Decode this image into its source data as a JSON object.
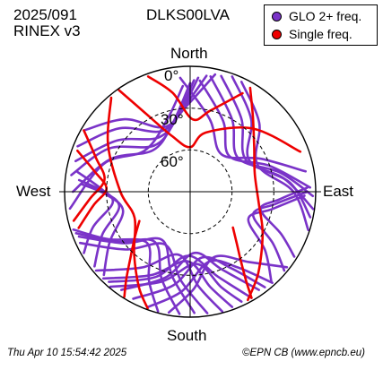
{
  "header": {
    "date": "2025/091",
    "format": "RINEX v3",
    "station": "DLKS00LVA"
  },
  "footer": {
    "timestamp": "Thu Apr 10 15:54:42 2025",
    "credit": "©EPN CB (www.epncb.eu)"
  },
  "colors": {
    "glo": "#7a33c8",
    "single": "#ee0000",
    "axis": "#000000",
    "grid": "#000000"
  },
  "chart_data": {
    "type": "polar-skyplot",
    "directions": {
      "north": "North",
      "south": "South",
      "east": "East",
      "west": "West"
    },
    "elevation_labels": [
      "0°",
      "30°",
      "60°"
    ],
    "elevation_rings": [
      0,
      30,
      60
    ],
    "legend": [
      {
        "name": "GLO 2+ freq.",
        "color": "#7a33c8"
      },
      {
        "name": "Single freq.",
        "color": "#ee0000"
      }
    ],
    "legend_position": "top-right",
    "series": [
      {
        "name": "GLO 2+ freq.",
        "color": "#7a33c8",
        "tracks": [
          {
            "az": [
              300,
              318,
              338,
              358,
              12
            ],
            "el": [
              2,
              20,
              40,
              28,
              4
            ]
          },
          {
            "az": [
              292,
              312,
              335,
              355,
              8
            ],
            "el": [
              3,
              22,
              42,
              30,
              6
            ]
          },
          {
            "az": [
              285,
              305,
              330,
              352,
              4
            ],
            "el": [
              5,
              26,
              45,
              34,
              8
            ]
          },
          {
            "az": [
              278,
              298,
              322,
              348,
              2
            ],
            "el": [
              4,
              24,
              48,
              38,
              10
            ]
          },
          {
            "az": [
              270,
              292,
              318,
              345,
              0
            ],
            "el": [
              6,
              28,
              50,
              40,
              12
            ]
          },
          {
            "az": [
              262,
              288,
              312,
              342,
              356
            ],
            "el": [
              3,
              25,
              46,
              36,
              14
            ]
          },
          {
            "az": [
              10,
              30,
              55,
              78,
              92
            ],
            "el": [
              6,
              30,
              48,
              24,
              2
            ]
          },
          {
            "az": [
              5,
              25,
              48,
              72,
              88
            ],
            "el": [
              10,
              34,
              52,
              30,
              4
            ]
          },
          {
            "az": [
              15,
              35,
              60,
              82,
              98
            ],
            "el": [
              4,
              26,
              44,
              22,
              1
            ]
          },
          {
            "az": [
              20,
              40,
              62,
              85,
              102
            ],
            "el": [
              2,
              22,
              42,
              18,
              2
            ]
          },
          {
            "az": [
              355,
              15,
              40,
              65,
              80
            ],
            "el": [
              8,
              36,
              55,
              34,
              6
            ]
          },
          {
            "az": [
              25,
              45,
              68,
              90,
              108
            ],
            "el": [
              3,
              20,
              38,
              16,
              1
            ]
          },
          {
            "az": [
              200,
              185,
              165,
              148,
              138
            ],
            "el": [
              2,
              18,
              38,
              26,
              2
            ]
          },
          {
            "az": [
              208,
              190,
              170,
              152,
              142
            ],
            "el": [
              3,
              22,
              42,
              28,
              3
            ]
          },
          {
            "az": [
              215,
              196,
              176,
              158,
              145
            ],
            "el": [
              4,
              26,
              46,
              30,
              4
            ]
          },
          {
            "az": [
              222,
              202,
              182,
              162,
              150
            ],
            "el": [
              3,
              24,
              44,
              26,
              2
            ]
          },
          {
            "az": [
              190,
              178,
              160,
              140,
              128
            ],
            "el": [
              2,
              20,
              40,
              24,
              2
            ]
          },
          {
            "az": [
              195,
              205,
              220,
              240,
              252
            ],
            "el": [
              1,
              20,
              42,
              22,
              2
            ]
          },
          {
            "az": [
              185,
              198,
              215,
              236,
              250
            ],
            "el": [
              2,
              24,
              46,
              26,
              3
            ]
          },
          {
            "az": [
              178,
              192,
              210,
              232,
              248
            ],
            "el": [
              3,
              28,
              50,
              30,
              4
            ]
          },
          {
            "az": [
              172,
              186,
              205,
              228,
              245
            ],
            "el": [
              2,
              26,
              48,
              28,
              3
            ]
          },
          {
            "az": [
              165,
              175,
              190,
              212,
              230
            ],
            "el": [
              1,
              22,
              44,
              26,
              2
            ]
          },
          {
            "az": [
              160,
              168,
              182,
              205,
              225
            ],
            "el": [
              2,
              20,
              40,
              24,
              2
            ]
          },
          {
            "az": [
              155,
              162,
              175,
              198,
              220
            ],
            "el": [
              3,
              18,
              38,
              22,
              1
            ]
          },
          {
            "az": [
              130,
              122,
              110,
              98,
              90
            ],
            "el": [
              2,
              20,
              42,
              28,
              6
            ]
          },
          {
            "az": [
              138,
              128,
              115,
              102,
              92
            ],
            "el": [
              3,
              22,
              44,
              30,
              8
            ]
          },
          {
            "az": [
              122,
              115,
              104,
              95,
              88
            ],
            "el": [
              2,
              18,
              38,
              26,
              6
            ]
          },
          {
            "az": [
              240,
              250,
              262,
              272,
              280
            ],
            "el": [
              2,
              16,
              34,
              26,
              8
            ]
          },
          {
            "az": [
              232,
              244,
              258,
              270,
              276
            ],
            "el": [
              3,
              20,
              38,
              28,
              10
            ]
          },
          {
            "az": [
              226,
              238,
              254,
              268,
              274
            ],
            "el": [
              4,
              22,
              40,
              30,
              12
            ]
          }
        ]
      },
      {
        "name": "Single freq.",
        "color": "#ee0000",
        "tracks": [
          {
            "az": [
              340,
              350,
              2,
              14,
              28
            ],
            "el": [
              2,
              18,
              38,
              30,
              10
            ]
          },
          {
            "az": [
              30,
              40,
              55,
              75,
              100,
              120,
              140,
              152
            ],
            "el": [
              4,
              20,
              34,
              42,
              40,
              30,
              14,
              2
            ]
          },
          {
            "az": [
              300,
              290,
              278,
              266,
              256
            ],
            "el": [
              2,
              18,
              28,
              18,
              4
            ]
          },
          {
            "az": [
              290,
              282,
              272,
              262,
              252
            ],
            "el": [
              4,
              20,
              30,
              20,
              6
            ]
          },
          {
            "az": [
              325,
              330,
              342,
              0,
              15,
              45,
              70
            ],
            "el": [
              1,
              24,
              48,
              58,
              46,
              26,
              6
            ]
          },
          {
            "az": [
              320,
              300,
              270,
              245,
              222,
              208,
              200
            ],
            "el": [
              2,
              22,
              40,
              46,
              30,
              12,
              1
            ]
          },
          {
            "az": [
              150,
              148,
              144,
              138,
              130
            ],
            "el": [
              2,
              14,
              28,
              40,
              50
            ]
          },
          {
            "az": [
              212,
              216,
              222,
              230,
              240
            ],
            "el": [
              1,
              12,
              26,
              38,
              48
            ]
          }
        ]
      }
    ]
  }
}
